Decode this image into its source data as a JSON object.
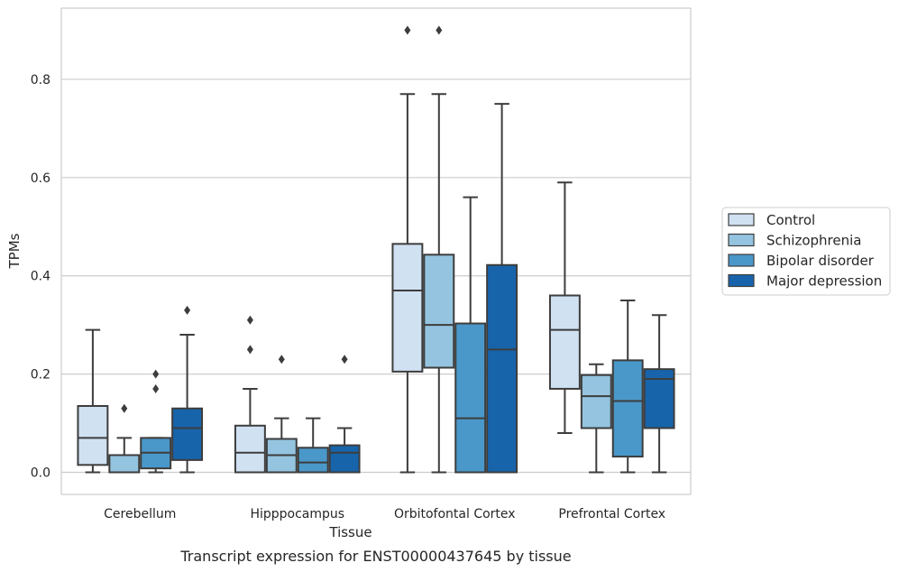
{
  "chart_data": {
    "type": "box",
    "xlabel": "Tissue",
    "ylabel": "TPMs",
    "caption": "Transcript expression for ENST00000437645 by tissue",
    "ylim": [
      -0.045,
      0.945
    ],
    "yticks": [
      0.0,
      0.2,
      0.4,
      0.6,
      0.8
    ],
    "ytick_labels": [
      "0.0",
      "0.2",
      "0.4",
      "0.6",
      "0.8"
    ],
    "grid": true,
    "legend_position": "right",
    "categories": [
      "Cerebellum",
      "Hipppocampus",
      "Orbitofontal Cortex",
      "Prefrontal Cortex"
    ],
    "series": [
      {
        "name": "Control",
        "color": "#d0e1f2",
        "boxes": [
          {
            "whislo": 0.0,
            "q1": 0.015,
            "med": 0.07,
            "q3": 0.135,
            "whishi": 0.29,
            "fliers": []
          },
          {
            "whislo": 0.0,
            "q1": 0.0,
            "med": 0.04,
            "q3": 0.095,
            "whishi": 0.17,
            "fliers": [
              0.25,
              0.31
            ]
          },
          {
            "whislo": 0.0,
            "q1": 0.205,
            "med": 0.37,
            "q3": 0.465,
            "whishi": 0.77,
            "fliers": [
              0.9
            ]
          },
          {
            "whislo": 0.08,
            "q1": 0.17,
            "med": 0.29,
            "q3": 0.36,
            "whishi": 0.59,
            "fliers": []
          }
        ]
      },
      {
        "name": "Schizophrenia",
        "color": "#94c4df",
        "boxes": [
          {
            "whislo": 0.0,
            "q1": 0.0,
            "med": 0.0,
            "q3": 0.035,
            "whishi": 0.07,
            "fliers": [
              0.13
            ]
          },
          {
            "whislo": 0.0,
            "q1": 0.0,
            "med": 0.035,
            "q3": 0.068,
            "whishi": 0.11,
            "fliers": [
              0.23
            ]
          },
          {
            "whislo": 0.0,
            "q1": 0.213,
            "med": 0.3,
            "q3": 0.443,
            "whishi": 0.77,
            "fliers": [
              0.9
            ]
          },
          {
            "whislo": 0.0,
            "q1": 0.09,
            "med": 0.155,
            "q3": 0.198,
            "whishi": 0.22,
            "fliers": []
          }
        ]
      },
      {
        "name": "Bipolar disorder",
        "color": "#4a98c9",
        "boxes": [
          {
            "whislo": 0.0,
            "q1": 0.008,
            "med": 0.04,
            "q3": 0.07,
            "whishi": 0.07,
            "fliers": [
              0.17,
              0.2
            ]
          },
          {
            "whislo": 0.0,
            "q1": 0.0,
            "med": 0.02,
            "q3": 0.05,
            "whishi": 0.11,
            "fliers": []
          },
          {
            "whislo": 0.0,
            "q1": 0.0,
            "med": 0.11,
            "q3": 0.303,
            "whishi": 0.56,
            "fliers": []
          },
          {
            "whislo": 0.0,
            "q1": 0.032,
            "med": 0.145,
            "q3": 0.228,
            "whishi": 0.35,
            "fliers": []
          }
        ]
      },
      {
        "name": "Major depression",
        "color": "#1764ab",
        "boxes": [
          {
            "whislo": 0.0,
            "q1": 0.025,
            "med": 0.09,
            "q3": 0.13,
            "whishi": 0.28,
            "fliers": [
              0.33
            ]
          },
          {
            "whislo": 0.0,
            "q1": 0.0,
            "med": 0.04,
            "q3": 0.055,
            "whishi": 0.09,
            "fliers": [
              0.23
            ]
          },
          {
            "whislo": 0.0,
            "q1": 0.0,
            "med": 0.25,
            "q3": 0.422,
            "whishi": 0.75,
            "fliers": []
          },
          {
            "whislo": 0.0,
            "q1": 0.09,
            "med": 0.19,
            "q3": 0.21,
            "whishi": 0.32,
            "fliers": []
          }
        ]
      }
    ]
  }
}
